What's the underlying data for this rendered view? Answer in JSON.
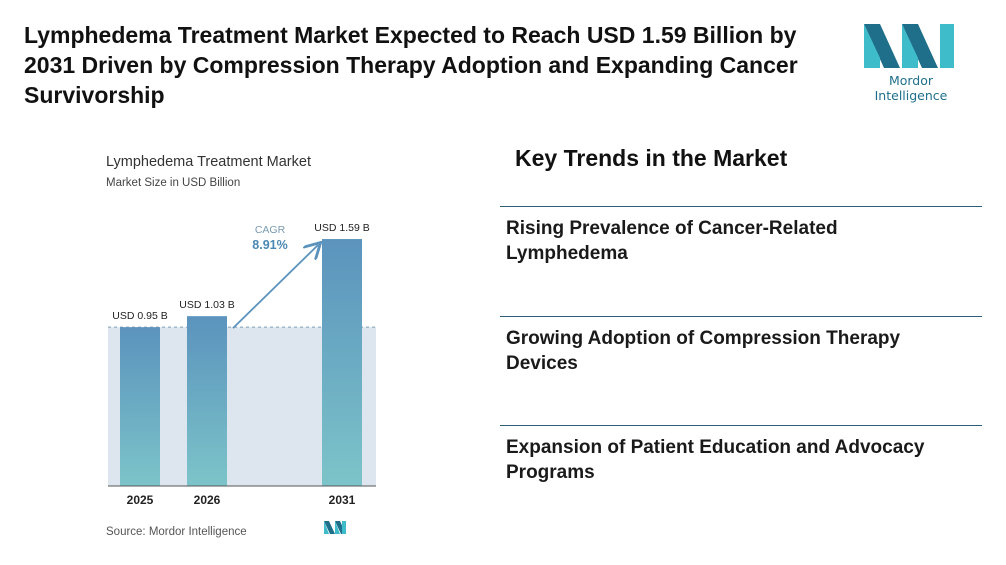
{
  "headline": "Lymphedema Treatment Market Expected to Reach USD 1.59 Billion by 2031 Driven by Compression Therapy Adoption and Expanding Cancer Survivorship",
  "brand": {
    "name": "Mordor Intelligence",
    "color_dark": "#1f6f8b",
    "color_light": "#3fbcc9"
  },
  "trends": {
    "title": "Key Trends in the Market",
    "items": [
      "Rising Prevalence of Cancer-Related Lymphedema",
      "Growing Adoption of Compression Therapy Devices",
      "Expansion of Patient Education and Advocacy Programs"
    ]
  },
  "chart_data": {
    "type": "bar",
    "title": "Lymphedema Treatment Market",
    "subtitle": "Market Size in USD Billion",
    "categories": [
      "2025",
      "2026",
      "2031"
    ],
    "values": [
      0.95,
      1.03,
      1.59
    ],
    "data_labels": [
      "USD 0.95 B",
      "USD 1.03 B",
      "USD 1.59 B"
    ],
    "cagr_label": "CAGR",
    "cagr_value": "8.91%",
    "ylim": [
      0,
      1.75
    ],
    "source": "Source: Mordor Intelligence",
    "bar_color_top": "#5b93bd",
    "bar_color_bottom": "#7cc4c9",
    "band_color": "#dde6ee"
  }
}
